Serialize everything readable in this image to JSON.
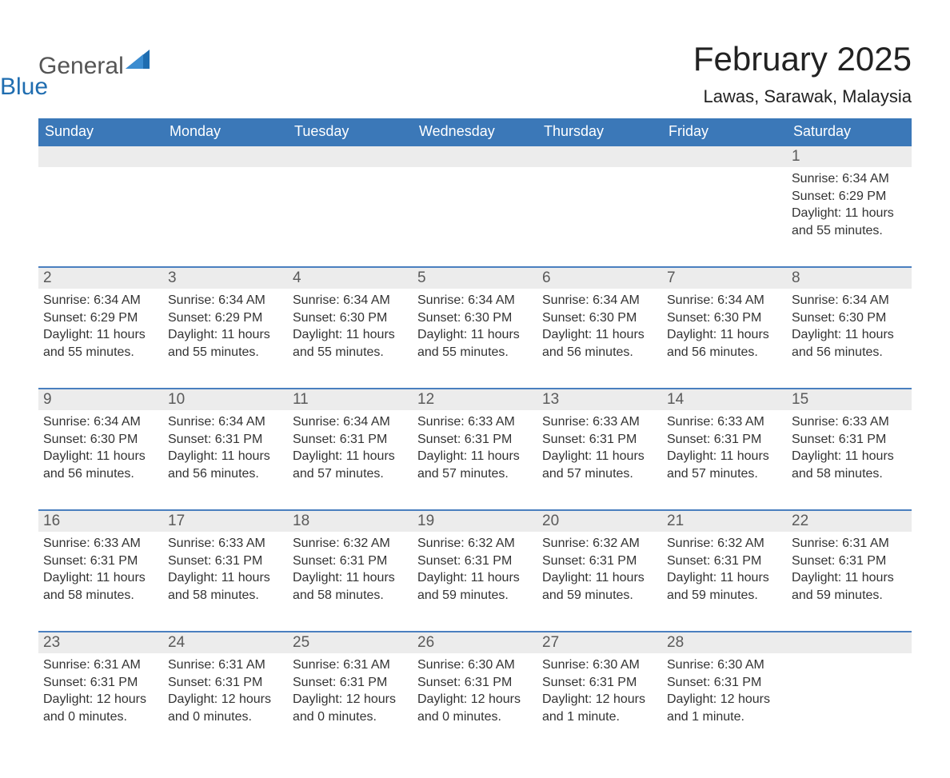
{
  "logo": {
    "text1": "General",
    "text2": "Blue"
  },
  "title": "February 2025",
  "location": "Lawas, Sarawak, Malaysia",
  "colors": {
    "header_bg": "#3b78b8",
    "header_text": "#ffffff",
    "daynum_bg": "#ececec",
    "week_border": "#4a7fbf",
    "logo_blue": "#1f6db0",
    "text_dark": "#222222",
    "background": "#ffffff"
  },
  "day_headers": [
    "Sunday",
    "Monday",
    "Tuesday",
    "Wednesday",
    "Thursday",
    "Friday",
    "Saturday"
  ],
  "weeks": [
    [
      {
        "n": "",
        "sunrise": "",
        "sunset": "",
        "daylight": ""
      },
      {
        "n": "",
        "sunrise": "",
        "sunset": "",
        "daylight": ""
      },
      {
        "n": "",
        "sunrise": "",
        "sunset": "",
        "daylight": ""
      },
      {
        "n": "",
        "sunrise": "",
        "sunset": "",
        "daylight": ""
      },
      {
        "n": "",
        "sunrise": "",
        "sunset": "",
        "daylight": ""
      },
      {
        "n": "",
        "sunrise": "",
        "sunset": "",
        "daylight": ""
      },
      {
        "n": "1",
        "sunrise": "Sunrise: 6:34 AM",
        "sunset": "Sunset: 6:29 PM",
        "daylight": "Daylight: 11 hours and 55 minutes."
      }
    ],
    [
      {
        "n": "2",
        "sunrise": "Sunrise: 6:34 AM",
        "sunset": "Sunset: 6:29 PM",
        "daylight": "Daylight: 11 hours and 55 minutes."
      },
      {
        "n": "3",
        "sunrise": "Sunrise: 6:34 AM",
        "sunset": "Sunset: 6:29 PM",
        "daylight": "Daylight: 11 hours and 55 minutes."
      },
      {
        "n": "4",
        "sunrise": "Sunrise: 6:34 AM",
        "sunset": "Sunset: 6:30 PM",
        "daylight": "Daylight: 11 hours and 55 minutes."
      },
      {
        "n": "5",
        "sunrise": "Sunrise: 6:34 AM",
        "sunset": "Sunset: 6:30 PM",
        "daylight": "Daylight: 11 hours and 55 minutes."
      },
      {
        "n": "6",
        "sunrise": "Sunrise: 6:34 AM",
        "sunset": "Sunset: 6:30 PM",
        "daylight": "Daylight: 11 hours and 56 minutes."
      },
      {
        "n": "7",
        "sunrise": "Sunrise: 6:34 AM",
        "sunset": "Sunset: 6:30 PM",
        "daylight": "Daylight: 11 hours and 56 minutes."
      },
      {
        "n": "8",
        "sunrise": "Sunrise: 6:34 AM",
        "sunset": "Sunset: 6:30 PM",
        "daylight": "Daylight: 11 hours and 56 minutes."
      }
    ],
    [
      {
        "n": "9",
        "sunrise": "Sunrise: 6:34 AM",
        "sunset": "Sunset: 6:30 PM",
        "daylight": "Daylight: 11 hours and 56 minutes."
      },
      {
        "n": "10",
        "sunrise": "Sunrise: 6:34 AM",
        "sunset": "Sunset: 6:31 PM",
        "daylight": "Daylight: 11 hours and 56 minutes."
      },
      {
        "n": "11",
        "sunrise": "Sunrise: 6:34 AM",
        "sunset": "Sunset: 6:31 PM",
        "daylight": "Daylight: 11 hours and 57 minutes."
      },
      {
        "n": "12",
        "sunrise": "Sunrise: 6:33 AM",
        "sunset": "Sunset: 6:31 PM",
        "daylight": "Daylight: 11 hours and 57 minutes."
      },
      {
        "n": "13",
        "sunrise": "Sunrise: 6:33 AM",
        "sunset": "Sunset: 6:31 PM",
        "daylight": "Daylight: 11 hours and 57 minutes."
      },
      {
        "n": "14",
        "sunrise": "Sunrise: 6:33 AM",
        "sunset": "Sunset: 6:31 PM",
        "daylight": "Daylight: 11 hours and 57 minutes."
      },
      {
        "n": "15",
        "sunrise": "Sunrise: 6:33 AM",
        "sunset": "Sunset: 6:31 PM",
        "daylight": "Daylight: 11 hours and 58 minutes."
      }
    ],
    [
      {
        "n": "16",
        "sunrise": "Sunrise: 6:33 AM",
        "sunset": "Sunset: 6:31 PM",
        "daylight": "Daylight: 11 hours and 58 minutes."
      },
      {
        "n": "17",
        "sunrise": "Sunrise: 6:33 AM",
        "sunset": "Sunset: 6:31 PM",
        "daylight": "Daylight: 11 hours and 58 minutes."
      },
      {
        "n": "18",
        "sunrise": "Sunrise: 6:32 AM",
        "sunset": "Sunset: 6:31 PM",
        "daylight": "Daylight: 11 hours and 58 minutes."
      },
      {
        "n": "19",
        "sunrise": "Sunrise: 6:32 AM",
        "sunset": "Sunset: 6:31 PM",
        "daylight": "Daylight: 11 hours and 59 minutes."
      },
      {
        "n": "20",
        "sunrise": "Sunrise: 6:32 AM",
        "sunset": "Sunset: 6:31 PM",
        "daylight": "Daylight: 11 hours and 59 minutes."
      },
      {
        "n": "21",
        "sunrise": "Sunrise: 6:32 AM",
        "sunset": "Sunset: 6:31 PM",
        "daylight": "Daylight: 11 hours and 59 minutes."
      },
      {
        "n": "22",
        "sunrise": "Sunrise: 6:31 AM",
        "sunset": "Sunset: 6:31 PM",
        "daylight": "Daylight: 11 hours and 59 minutes."
      }
    ],
    [
      {
        "n": "23",
        "sunrise": "Sunrise: 6:31 AM",
        "sunset": "Sunset: 6:31 PM",
        "daylight": "Daylight: 12 hours and 0 minutes."
      },
      {
        "n": "24",
        "sunrise": "Sunrise: 6:31 AM",
        "sunset": "Sunset: 6:31 PM",
        "daylight": "Daylight: 12 hours and 0 minutes."
      },
      {
        "n": "25",
        "sunrise": "Sunrise: 6:31 AM",
        "sunset": "Sunset: 6:31 PM",
        "daylight": "Daylight: 12 hours and 0 minutes."
      },
      {
        "n": "26",
        "sunrise": "Sunrise: 6:30 AM",
        "sunset": "Sunset: 6:31 PM",
        "daylight": "Daylight: 12 hours and 0 minutes."
      },
      {
        "n": "27",
        "sunrise": "Sunrise: 6:30 AM",
        "sunset": "Sunset: 6:31 PM",
        "daylight": "Daylight: 12 hours and 1 minute."
      },
      {
        "n": "28",
        "sunrise": "Sunrise: 6:30 AM",
        "sunset": "Sunset: 6:31 PM",
        "daylight": "Daylight: 12 hours and 1 minute."
      },
      {
        "n": "",
        "sunrise": "",
        "sunset": "",
        "daylight": ""
      }
    ]
  ]
}
